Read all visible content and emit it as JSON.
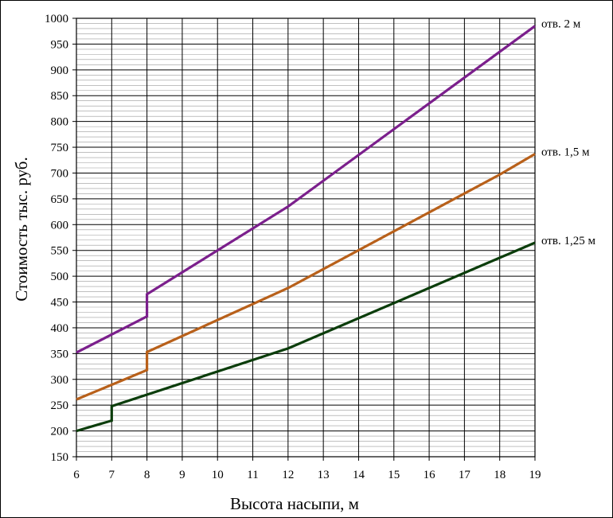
{
  "chart_data": {
    "type": "line",
    "xlabel": "Высота насыпи, м",
    "ylabel": "Стоимость тыс. руб.",
    "xlim": [
      6,
      19
    ],
    "ylim": [
      150,
      1000
    ],
    "x_ticks": [
      "6",
      "7",
      "8",
      "9",
      "10",
      "11",
      "12",
      "13",
      "14",
      "15",
      "16",
      "17",
      "18",
      "19"
    ],
    "y_ticks": [
      "150",
      "200",
      "250",
      "300",
      "350",
      "400",
      "450",
      "500",
      "550",
      "600",
      "650",
      "700",
      "750",
      "800",
      "850",
      "900",
      "950",
      "1000"
    ],
    "grid": true,
    "series": [
      {
        "name": "отв. 2 м",
        "color": "#7b1f8c",
        "points": [
          [
            6,
            352
          ],
          [
            8,
            422
          ],
          [
            8,
            465
          ],
          [
            12,
            635
          ],
          [
            18,
            935
          ],
          [
            19,
            985
          ]
        ]
      },
      {
        "name": "отв. 1,5 м",
        "color": "#b8601a",
        "points": [
          [
            6,
            261
          ],
          [
            8,
            318
          ],
          [
            8,
            353
          ],
          [
            12,
            477
          ],
          [
            18,
            697
          ],
          [
            19,
            737
          ]
        ]
      },
      {
        "name": "отв. 1,25 м",
        "color": "#0b3d0b",
        "points": [
          [
            6,
            200
          ],
          [
            7,
            220
          ],
          [
            7,
            248
          ],
          [
            12,
            360
          ],
          [
            19,
            565
          ]
        ]
      }
    ]
  }
}
